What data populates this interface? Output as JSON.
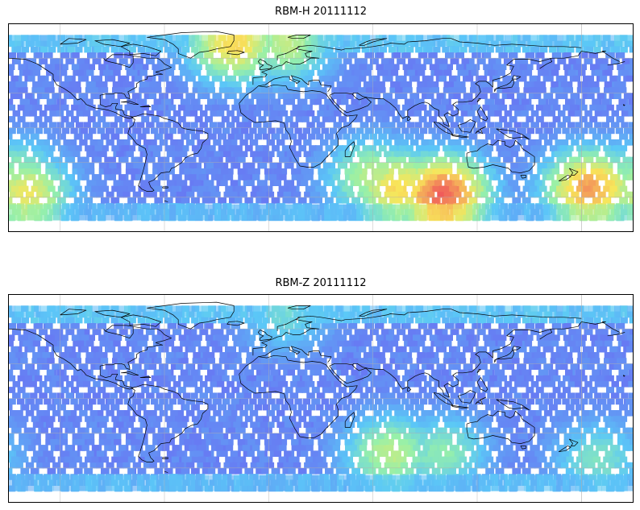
{
  "panels": [
    {
      "title": "RBM-H 20111112",
      "colors": {
        "low": "#6a6af2",
        "mid": "#5bc8f7",
        "high": "#f05a5a"
      },
      "hotspots": [
        {
          "lon": -20,
          "lat": 75,
          "level": 0.75
        },
        {
          "lon": 10,
          "lat": 75,
          "level": 0.6
        },
        {
          "lon": 100,
          "lat": -55,
          "level": 0.95
        },
        {
          "lon": 75,
          "lat": -50,
          "level": 0.75
        },
        {
          "lon": 60,
          "lat": -40,
          "level": 0.6
        },
        {
          "lon": -145,
          "lat": -40,
          "level": 0.55
        },
        {
          "lon": -175,
          "lat": -50,
          "level": 0.85
        },
        {
          "lon": -140,
          "lat": -55,
          "level": 0.7
        }
      ]
    },
    {
      "title": "RBM-Z 20111112",
      "colors": {
        "low": "#6a6af2",
        "mid": "#5bc8f7",
        "high": "#f05a5a"
      },
      "hotspots": [
        {
          "lon": 70,
          "lat": -45,
          "level": 0.6
        },
        {
          "lon": 100,
          "lat": -45,
          "level": 0.5
        },
        {
          "lon": -170,
          "lat": -50,
          "level": 0.45
        },
        {
          "lon": 10,
          "lat": 75,
          "level": 0.4
        }
      ]
    }
  ]
}
